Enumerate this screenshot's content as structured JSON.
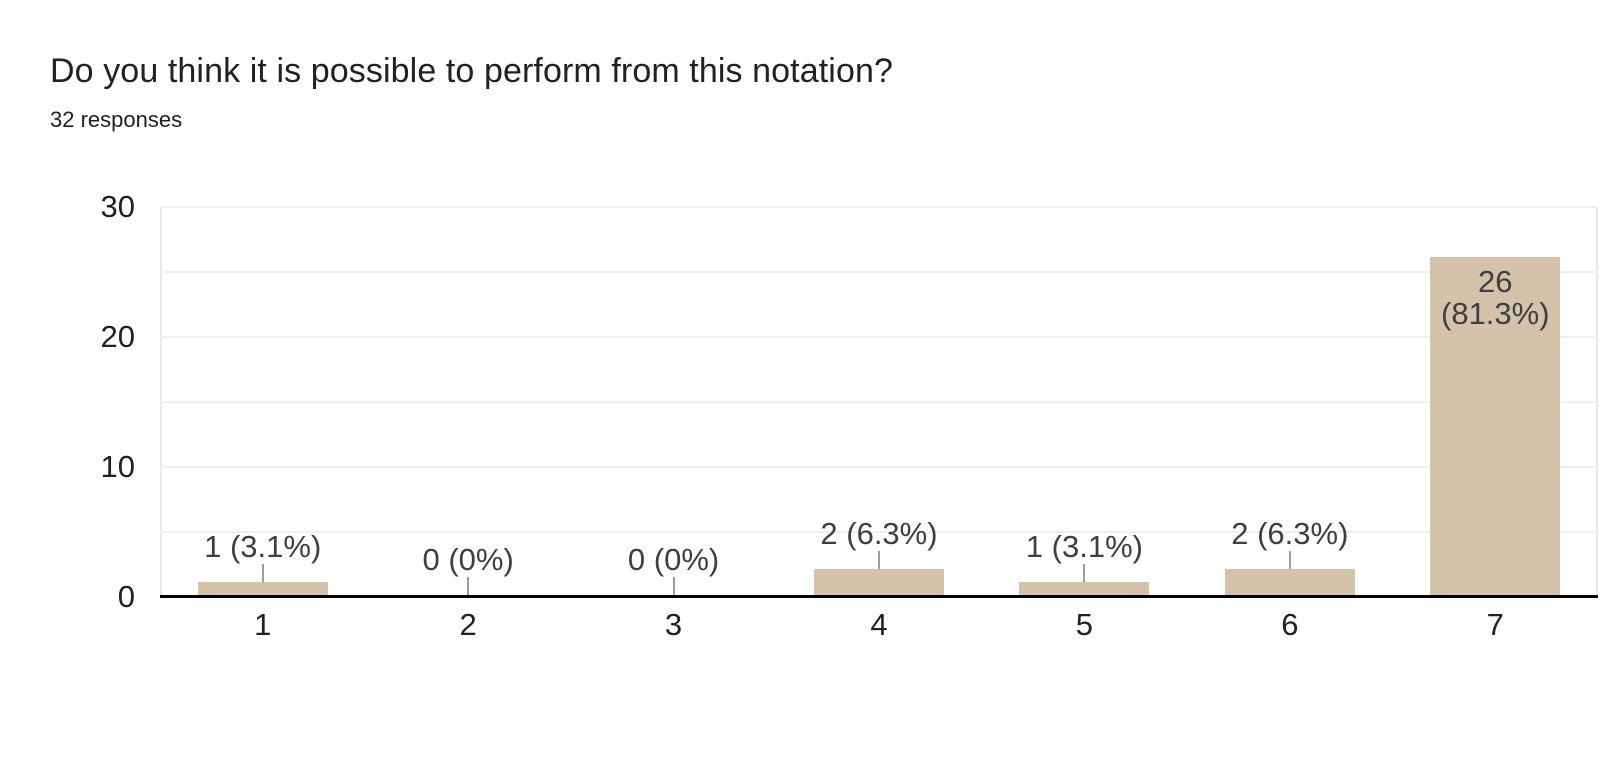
{
  "header": {
    "title": "Do you think it is possible to perform from this notation?",
    "responses": "32 responses"
  },
  "chart_data": {
    "type": "bar",
    "title": "Do you think it is possible to perform from this notation?",
    "subtitle": "32 responses",
    "categories": [
      "1",
      "2",
      "3",
      "4",
      "5",
      "6",
      "7"
    ],
    "values": [
      1,
      0,
      0,
      2,
      1,
      2,
      26
    ],
    "percentages": [
      "3.1%",
      "0%",
      "0%",
      "6.3%",
      "3.1%",
      "6.3%",
      "81.3%"
    ],
    "bar_labels": [
      "1 (3.1%)",
      "0 (0%)",
      "0 (0%)",
      "2 (6.3%)",
      "1 (3.1%)",
      "2 (6.3%)",
      "26 (81.3%)"
    ],
    "inside_label_index": 6,
    "inside_label_lines": [
      "26",
      "(81.3%)"
    ],
    "xlabel": "",
    "ylabel": "",
    "ylim": [
      0,
      30
    ],
    "yticks": [
      0,
      10,
      20,
      30
    ],
    "gridline_step": 5,
    "grid": "horizontal",
    "legend": "none",
    "colors": {
      "bar": "#d4c3a8",
      "gridline": "#efefef",
      "frame": "#e8e8e8",
      "axis_line": "#000000",
      "text": "#202124",
      "annotation": "#3c4043",
      "stub": "#9e9e9e",
      "background": "#ffffff"
    }
  }
}
